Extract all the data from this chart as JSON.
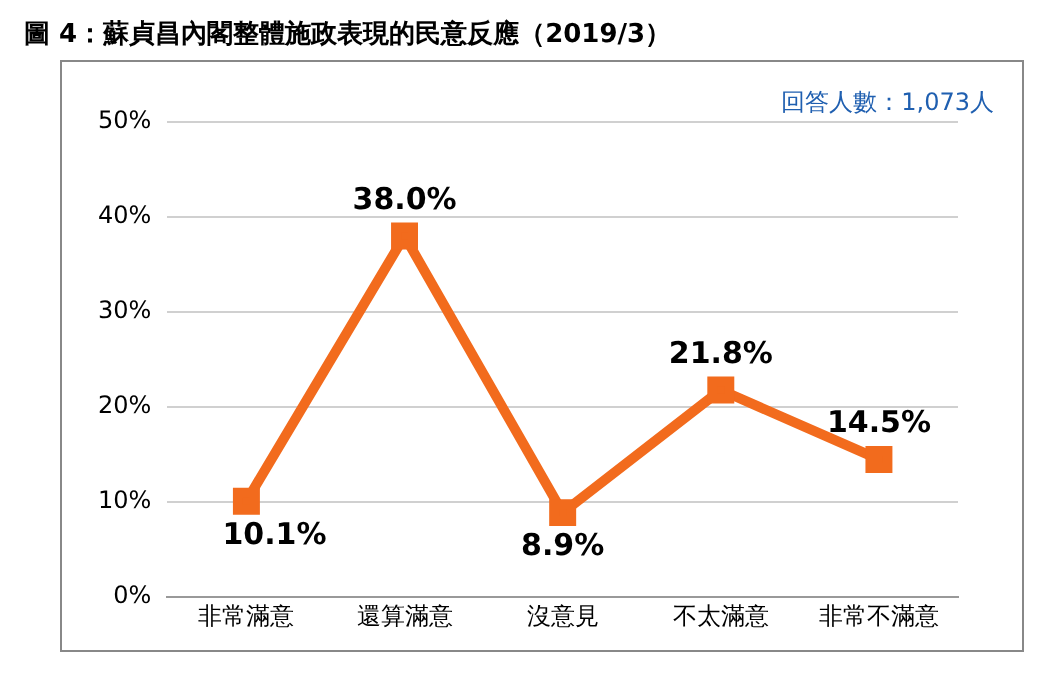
{
  "chart_data": {
    "type": "line",
    "title": "圖 4：蘇貞昌內閣整體施政表現的民意反應（2019/3）",
    "annotations": [
      "回答人數：1,073人"
    ],
    "categories": [
      "非常滿意",
      "還算滿意",
      "沒意見",
      "不太滿意",
      "非常不滿意"
    ],
    "series": [
      {
        "color": "#f26b1d",
        "values": [
          10.1,
          38.0,
          8.9,
          21.8,
          14.5
        ],
        "value_labels": [
          "10.1%",
          "38.0%",
          "8.9%",
          "21.8%",
          "14.5%"
        ]
      }
    ],
    "ylim": [
      0,
      50
    ],
    "yticks": [
      {
        "value": 0,
        "label": "0%"
      },
      {
        "value": 10,
        "label": "10%"
      },
      {
        "value": 20,
        "label": "20%"
      },
      {
        "value": 30,
        "label": "30%"
      },
      {
        "value": 40,
        "label": "40%"
      },
      {
        "value": 50,
        "label": "50%"
      }
    ],
    "grid": "y",
    "legend": false,
    "marker": "square",
    "line_style": "solid"
  }
}
